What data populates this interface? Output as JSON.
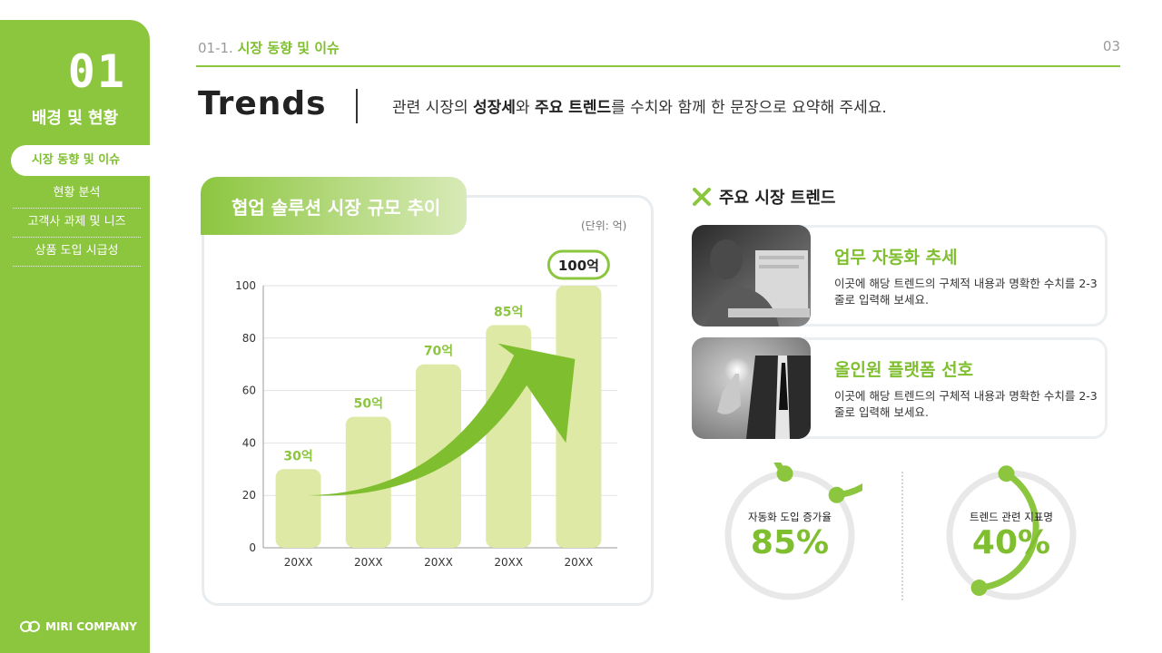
{
  "sidebar": {
    "number": "01",
    "title": "배경 및 현황",
    "active_item": "시장 동향 및 이슈",
    "items": [
      {
        "label": "현황 분석"
      },
      {
        "label": "고객사 과제 및 니즈"
      },
      {
        "label": "상품 도입 시급성"
      }
    ],
    "logo_text": "MIRI COMPANY"
  },
  "header": {
    "crumb_num": "01-1.",
    "crumb_section": "시장 동향 및 이슈",
    "page_number": "03",
    "title": "Trends",
    "lead_1": "관련 시장의 ",
    "lead_bold_1": "성장세",
    "lead_2": "와 ",
    "lead_bold_2": "주요 트렌드",
    "lead_3": "를 수치와 함께 한 문장으로 요약해 주세요."
  },
  "chart_card": {
    "title": "협업 솔루션 시장 규모 추이",
    "unit": "(단위: 억)"
  },
  "chart_data": {
    "type": "bar",
    "categories": [
      "20XX",
      "20XX",
      "20XX",
      "20XX",
      "20XX"
    ],
    "values": [
      30,
      50,
      70,
      85,
      100
    ],
    "data_labels": [
      "30억",
      "50억",
      "70억",
      "85억",
      "100억"
    ],
    "yticks": [
      0,
      20,
      40,
      60,
      80,
      100
    ],
    "ylim": [
      0,
      100
    ],
    "grid": true,
    "highlight_last": true,
    "bar_color": "#dfe9a6",
    "label_color": "#8cc63f",
    "arrow_color": "#7fbf2f"
  },
  "trends": {
    "heading": "주요 시장 트렌드",
    "cards": [
      {
        "title": "업무 자동화 추세",
        "desc": "이곳에 해당 트렌드의 구체적 내용과 명확한 수치를 2-3줄로 입력해 보세요.",
        "photo": "person-laptop-photo"
      },
      {
        "title": "올인원 플랫폼 선호",
        "desc": "이곳에 해당 트렌드의 구체적 내용과 명확한 수치를 2-3줄로 입력해 보세요.",
        "photo": "businessman-touch-photo"
      }
    ]
  },
  "gauges": [
    {
      "label": "자동화 도입 증가율",
      "value": "85%",
      "fraction": 0.85
    },
    {
      "label": "트렌드 관련 지표명",
      "value": "40%",
      "fraction": 0.4
    }
  ],
  "colors": {
    "accent": "#8cc63f",
    "accent_dark": "#7fbf2f",
    "track": "#e8e8e8"
  }
}
